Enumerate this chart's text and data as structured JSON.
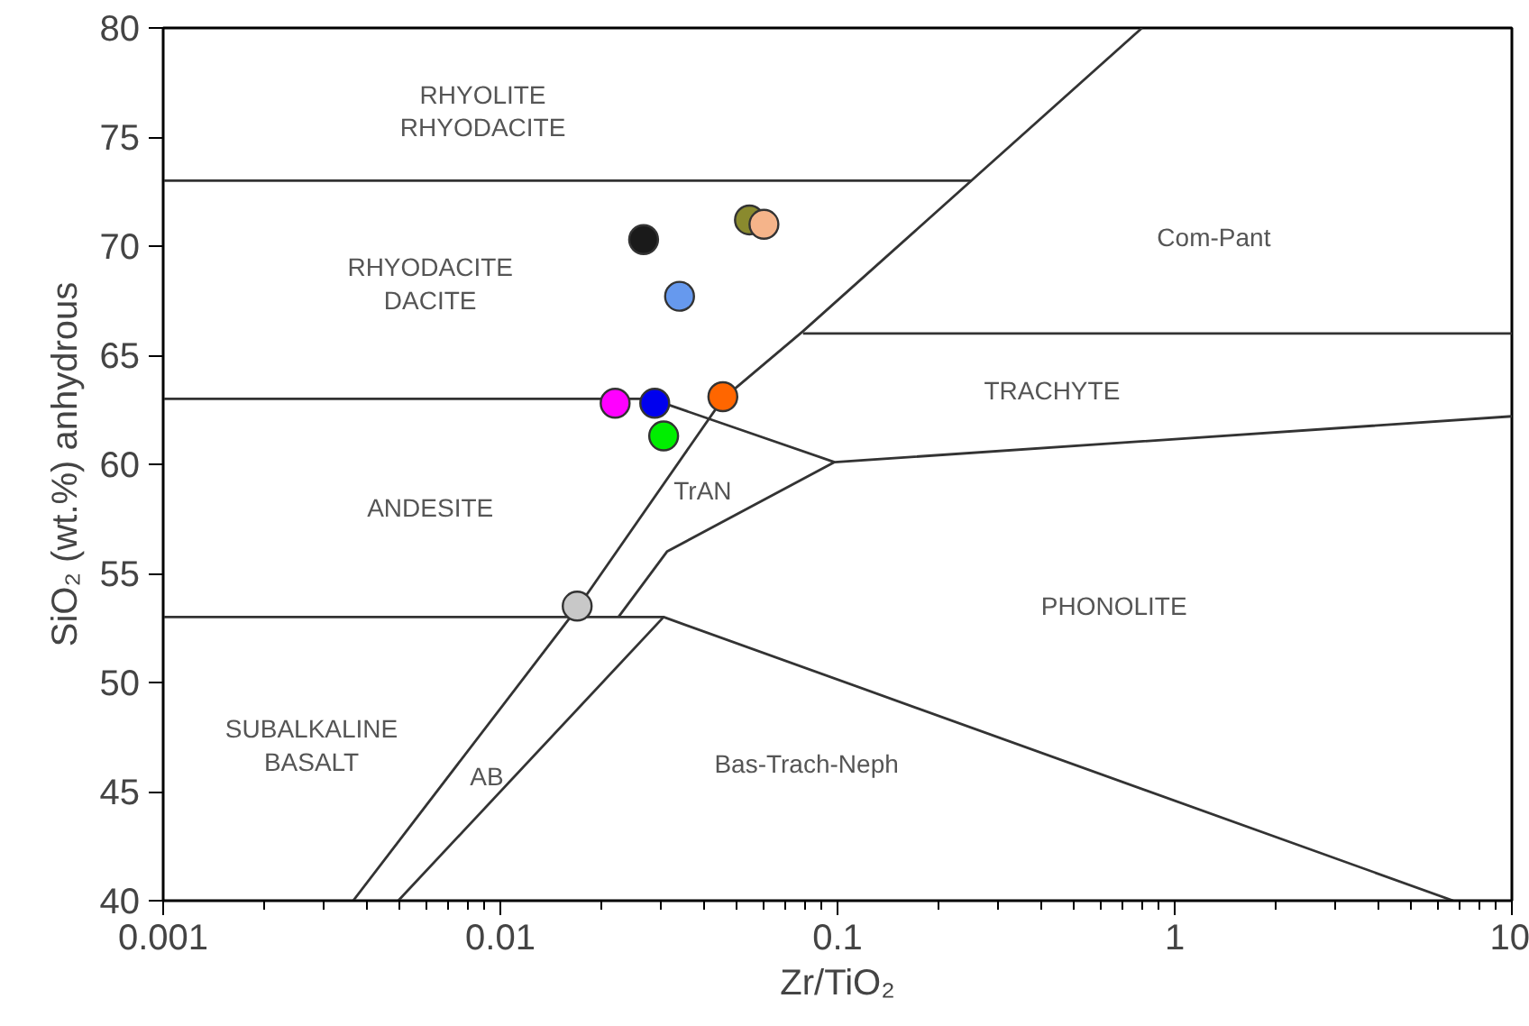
{
  "chart_data": {
    "type": "scatter",
    "xlabel": "Zr/TiO₂",
    "ylabel": "SiO₂ (wt.%) anhydrous",
    "log": "x",
    "xlim": [
      0.001,
      10
    ],
    "ylim": [
      40,
      80
    ],
    "xticks": [
      0.001,
      0.01,
      0.1,
      1,
      10
    ],
    "yticks": [
      40,
      45,
      50,
      55,
      60,
      65,
      70,
      75,
      80
    ],
    "grid": false,
    "series": [
      {
        "marker": "circle",
        "x": [
          0.0266,
          0.0548,
          0.0605,
          0.034,
          0.0219,
          0.0287,
          0.0457,
          0.0305,
          0.0169
        ],
        "values": [
          70.3,
          71.2,
          71.0,
          67.7,
          62.8,
          62.8,
          63.1,
          61.3,
          53.5
        ],
        "colors": [
          "#1a1a1a",
          "#8a8a2e",
          "#f5b48a",
          "#6699ee",
          "#ff00ff",
          "#0000ee",
          "#ff6600",
          "#00ee00",
          "#c8c8c8"
        ]
      },
      {
        "type": "line",
        "marker": "none",
        "color": "#333333",
        "x": [
          0.00366,
          0.0169,
          0.0457,
          0.079,
          0.8
        ],
        "values": [
          40,
          53.4,
          63.0,
          66.1,
          80
        ]
      },
      {
        "type": "line",
        "marker": "none",
        "color": "#333333",
        "x": [
          0.001,
          0.25
        ],
        "values": [
          73,
          73
        ]
      },
      {
        "type": "line",
        "marker": "none",
        "color": "#333333",
        "x": [
          0.079,
          10
        ],
        "values": [
          66,
          66
        ]
      },
      {
        "type": "line",
        "marker": "none",
        "color": "#333333",
        "x": [
          0.001,
          0.028,
          0.098,
          10
        ],
        "values": [
          63,
          63,
          60.1,
          62.2
        ]
      },
      {
        "type": "line",
        "marker": "none",
        "color": "#333333",
        "x": [
          0.0224,
          0.0312,
          0.098
        ],
        "values": [
          53,
          56.0,
          60.1
        ]
      },
      {
        "type": "line",
        "marker": "none",
        "color": "#333333",
        "x": [
          0.001,
          0.0305,
          6.7
        ],
        "values": [
          53,
          53,
          40
        ]
      },
      {
        "type": "line",
        "marker": "none",
        "color": "#333333",
        "x": [
          0.00498,
          0.0305
        ],
        "values": [
          40,
          53
        ]
      }
    ],
    "annotations": [
      "RHYOLITE\nRHYODACITE",
      "RHYODACITE\nDACITE",
      "Com-Pant",
      "TRACHYTE",
      "ANDESITE",
      "TrAN",
      "PHONOLITE",
      "SUBALKALINE\nBASALT",
      "AB",
      "Bas-Trach-Neph"
    ]
  }
}
